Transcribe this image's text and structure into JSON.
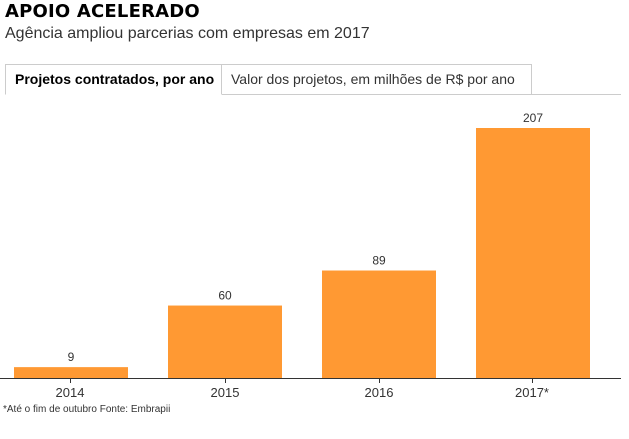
{
  "title": "APOIO ACELERADO",
  "subtitle": "Agência ampliou parcerias com empresas em 2017",
  "tabs": [
    {
      "label": "Projetos contratados, por ano",
      "active": true
    },
    {
      "label": "Valor dos projetos, em milhões de R$ por ano",
      "active": false
    }
  ],
  "colors": {
    "bar": "#ff9933",
    "axis": "#333333",
    "tab_border": "#cccccc"
  },
  "chart_data": {
    "type": "bar",
    "title": "",
    "xlabel": "",
    "ylabel": "",
    "categories": [
      "2014",
      "2015",
      "2016",
      "2017*"
    ],
    "values": [
      9,
      60,
      89,
      207
    ],
    "ylim": [
      0,
      220
    ],
    "grid": false,
    "legend": "none",
    "data_labels": true
  },
  "footnote": "*Até o fim de outubro Fonte: Embrapii"
}
